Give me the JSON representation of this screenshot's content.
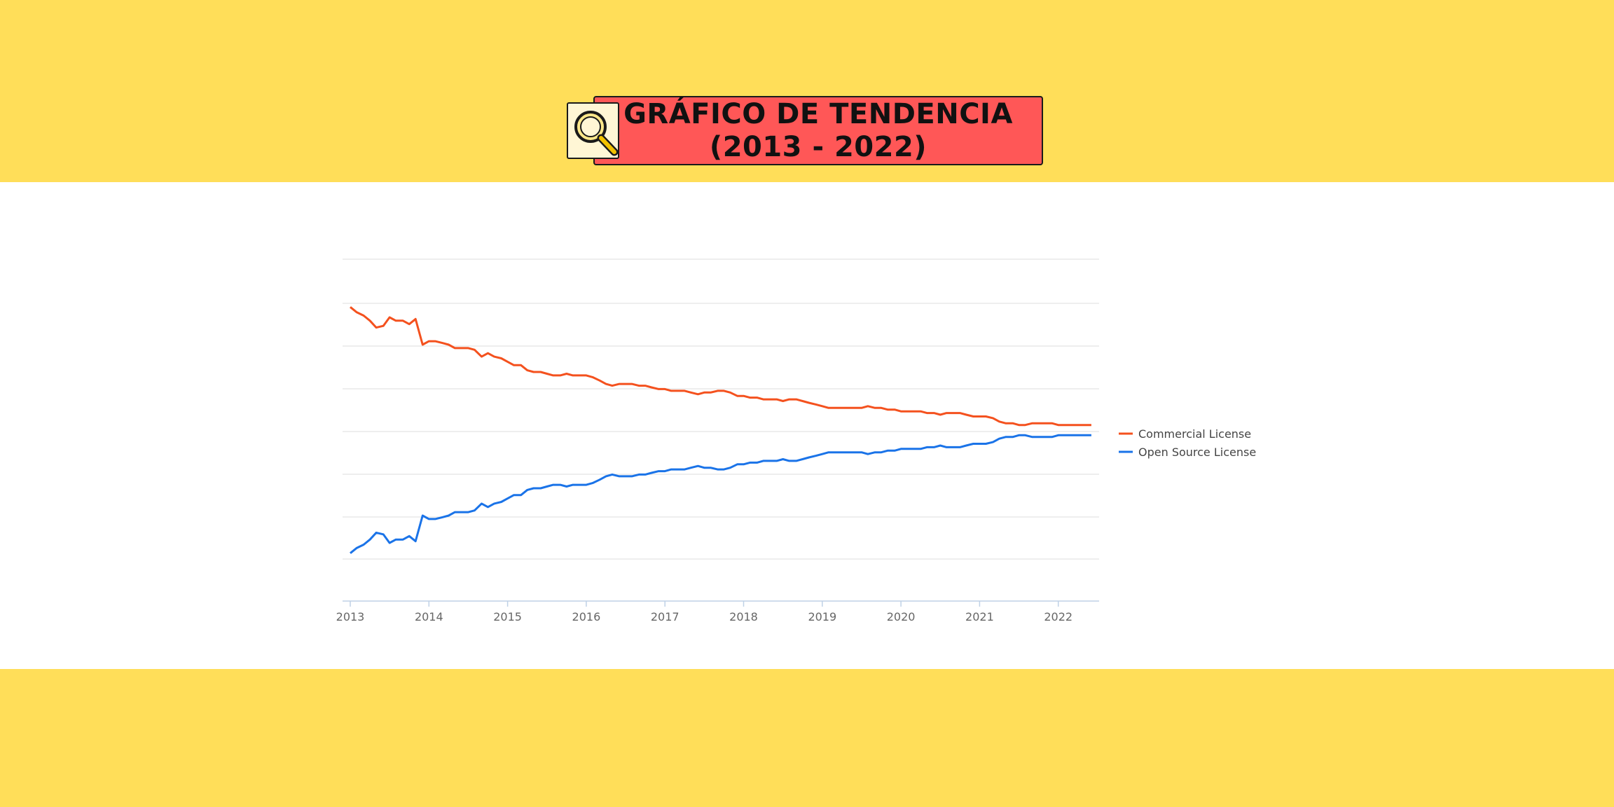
{
  "header": {
    "title_line1": "GRÁFICO DE TENDENCIA",
    "title_line2": "(2013 - 2022)",
    "icon": "magnifier-icon"
  },
  "colors": {
    "background": "#FFDE59",
    "title_box": "#FF5757",
    "commercial": "#F4511E",
    "open_source": "#1A73E8"
  },
  "chart_data": {
    "type": "line",
    "x_range": [
      2013.0,
      2022.5
    ],
    "ylim": [
      0,
      100
    ],
    "grid": true,
    "legend_position": "right",
    "x_ticks": [
      "2013",
      "2014",
      "2015",
      "2016",
      "2017",
      "2018",
      "2019",
      "2020",
      "2021",
      "2022"
    ],
    "series": [
      {
        "name": "Commercial License",
        "color": "#F4511E",
        "points": [
          [
            2013.0,
            86.0
          ],
          [
            2013.08,
            84.5
          ],
          [
            2013.17,
            83.5
          ],
          [
            2013.25,
            82.0
          ],
          [
            2013.33,
            80.0
          ],
          [
            2013.42,
            80.5
          ],
          [
            2013.5,
            83.0
          ],
          [
            2013.58,
            82.0
          ],
          [
            2013.67,
            82.0
          ],
          [
            2013.75,
            81.0
          ],
          [
            2013.83,
            82.5
          ],
          [
            2013.92,
            75.0
          ],
          [
            2014.0,
            76.0
          ],
          [
            2014.08,
            76.0
          ],
          [
            2014.17,
            75.5
          ],
          [
            2014.25,
            75.0
          ],
          [
            2014.33,
            74.0
          ],
          [
            2014.42,
            74.0
          ],
          [
            2014.5,
            74.0
          ],
          [
            2014.58,
            73.5
          ],
          [
            2014.67,
            71.5
          ],
          [
            2014.75,
            72.5
          ],
          [
            2014.83,
            71.5
          ],
          [
            2014.92,
            71.0
          ],
          [
            2015.0,
            70.0
          ],
          [
            2015.08,
            69.0
          ],
          [
            2015.17,
            69.0
          ],
          [
            2015.25,
            67.5
          ],
          [
            2015.33,
            67.0
          ],
          [
            2015.42,
            67.0
          ],
          [
            2015.5,
            66.5
          ],
          [
            2015.58,
            66.0
          ],
          [
            2015.67,
            66.0
          ],
          [
            2015.75,
            66.5
          ],
          [
            2015.83,
            66.0
          ],
          [
            2015.92,
            66.0
          ],
          [
            2016.0,
            66.0
          ],
          [
            2016.08,
            65.5
          ],
          [
            2016.17,
            64.5
          ],
          [
            2016.25,
            63.5
          ],
          [
            2016.33,
            63.0
          ],
          [
            2016.42,
            63.5
          ],
          [
            2016.5,
            63.5
          ],
          [
            2016.58,
            63.5
          ],
          [
            2016.67,
            63.0
          ],
          [
            2016.75,
            63.0
          ],
          [
            2016.83,
            62.5
          ],
          [
            2016.92,
            62.0
          ],
          [
            2017.0,
            62.0
          ],
          [
            2017.08,
            61.5
          ],
          [
            2017.17,
            61.5
          ],
          [
            2017.25,
            61.5
          ],
          [
            2017.33,
            61.0
          ],
          [
            2017.42,
            60.5
          ],
          [
            2017.5,
            61.0
          ],
          [
            2017.58,
            61.0
          ],
          [
            2017.67,
            61.5
          ],
          [
            2017.75,
            61.5
          ],
          [
            2017.83,
            61.0
          ],
          [
            2017.92,
            60.0
          ],
          [
            2018.0,
            60.0
          ],
          [
            2018.08,
            59.5
          ],
          [
            2018.17,
            59.5
          ],
          [
            2018.25,
            59.0
          ],
          [
            2018.33,
            59.0
          ],
          [
            2018.42,
            59.0
          ],
          [
            2018.5,
            58.5
          ],
          [
            2018.58,
            59.0
          ],
          [
            2018.67,
            59.0
          ],
          [
            2018.75,
            58.5
          ],
          [
            2018.83,
            58.0
          ],
          [
            2018.92,
            57.5
          ],
          [
            2019.0,
            57.0
          ],
          [
            2019.08,
            56.5
          ],
          [
            2019.17,
            56.5
          ],
          [
            2019.25,
            56.5
          ],
          [
            2019.33,
            56.5
          ],
          [
            2019.42,
            56.5
          ],
          [
            2019.5,
            56.5
          ],
          [
            2019.58,
            57.0
          ],
          [
            2019.67,
            56.5
          ],
          [
            2019.75,
            56.5
          ],
          [
            2019.83,
            56.0
          ],
          [
            2019.92,
            56.0
          ],
          [
            2020.0,
            55.5
          ],
          [
            2020.08,
            55.5
          ],
          [
            2020.17,
            55.5
          ],
          [
            2020.25,
            55.5
          ],
          [
            2020.33,
            55.0
          ],
          [
            2020.42,
            55.0
          ],
          [
            2020.5,
            54.5
          ],
          [
            2020.58,
            55.0
          ],
          [
            2020.67,
            55.0
          ],
          [
            2020.75,
            55.0
          ],
          [
            2020.83,
            54.5
          ],
          [
            2020.92,
            54.0
          ],
          [
            2021.0,
            54.0
          ],
          [
            2021.08,
            54.0
          ],
          [
            2021.17,
            53.5
          ],
          [
            2021.25,
            52.5
          ],
          [
            2021.33,
            52.0
          ],
          [
            2021.42,
            52.0
          ],
          [
            2021.5,
            51.5
          ],
          [
            2021.58,
            51.5
          ],
          [
            2021.67,
            52.0
          ],
          [
            2021.75,
            52.0
          ],
          [
            2021.83,
            52.0
          ],
          [
            2021.92,
            52.0
          ],
          [
            2022.0,
            51.5
          ],
          [
            2022.08,
            51.5
          ],
          [
            2022.17,
            51.5
          ],
          [
            2022.25,
            51.5
          ],
          [
            2022.33,
            51.5
          ],
          [
            2022.42,
            51.5
          ]
        ]
      },
      {
        "name": "Open Source License",
        "color": "#1A73E8",
        "points": [
          [
            2013.0,
            14.0
          ],
          [
            2013.08,
            15.5
          ],
          [
            2013.17,
            16.5
          ],
          [
            2013.25,
            18.0
          ],
          [
            2013.33,
            20.0
          ],
          [
            2013.42,
            19.5
          ],
          [
            2013.5,
            17.0
          ],
          [
            2013.58,
            18.0
          ],
          [
            2013.67,
            18.0
          ],
          [
            2013.75,
            19.0
          ],
          [
            2013.83,
            17.5
          ],
          [
            2013.92,
            25.0
          ],
          [
            2014.0,
            24.0
          ],
          [
            2014.08,
            24.0
          ],
          [
            2014.17,
            24.5
          ],
          [
            2014.25,
            25.0
          ],
          [
            2014.33,
            26.0
          ],
          [
            2014.42,
            26.0
          ],
          [
            2014.5,
            26.0
          ],
          [
            2014.58,
            26.5
          ],
          [
            2014.67,
            28.5
          ],
          [
            2014.75,
            27.5
          ],
          [
            2014.83,
            28.5
          ],
          [
            2014.92,
            29.0
          ],
          [
            2015.0,
            30.0
          ],
          [
            2015.08,
            31.0
          ],
          [
            2015.17,
            31.0
          ],
          [
            2015.25,
            32.5
          ],
          [
            2015.33,
            33.0
          ],
          [
            2015.42,
            33.0
          ],
          [
            2015.5,
            33.5
          ],
          [
            2015.58,
            34.0
          ],
          [
            2015.67,
            34.0
          ],
          [
            2015.75,
            33.5
          ],
          [
            2015.83,
            34.0
          ],
          [
            2015.92,
            34.0
          ],
          [
            2016.0,
            34.0
          ],
          [
            2016.08,
            34.5
          ],
          [
            2016.17,
            35.5
          ],
          [
            2016.25,
            36.5
          ],
          [
            2016.33,
            37.0
          ],
          [
            2016.42,
            36.5
          ],
          [
            2016.5,
            36.5
          ],
          [
            2016.58,
            36.5
          ],
          [
            2016.67,
            37.0
          ],
          [
            2016.75,
            37.0
          ],
          [
            2016.83,
            37.5
          ],
          [
            2016.92,
            38.0
          ],
          [
            2017.0,
            38.0
          ],
          [
            2017.08,
            38.5
          ],
          [
            2017.17,
            38.5
          ],
          [
            2017.25,
            38.5
          ],
          [
            2017.33,
            39.0
          ],
          [
            2017.42,
            39.5
          ],
          [
            2017.5,
            39.0
          ],
          [
            2017.58,
            39.0
          ],
          [
            2017.67,
            38.5
          ],
          [
            2017.75,
            38.5
          ],
          [
            2017.83,
            39.0
          ],
          [
            2017.92,
            40.0
          ],
          [
            2018.0,
            40.0
          ],
          [
            2018.08,
            40.5
          ],
          [
            2018.17,
            40.5
          ],
          [
            2018.25,
            41.0
          ],
          [
            2018.33,
            41.0
          ],
          [
            2018.42,
            41.0
          ],
          [
            2018.5,
            41.5
          ],
          [
            2018.58,
            41.0
          ],
          [
            2018.67,
            41.0
          ],
          [
            2018.75,
            41.5
          ],
          [
            2018.83,
            42.0
          ],
          [
            2018.92,
            42.5
          ],
          [
            2019.0,
            43.0
          ],
          [
            2019.08,
            43.5
          ],
          [
            2019.17,
            43.5
          ],
          [
            2019.25,
            43.5
          ],
          [
            2019.33,
            43.5
          ],
          [
            2019.42,
            43.5
          ],
          [
            2019.5,
            43.5
          ],
          [
            2019.58,
            43.0
          ],
          [
            2019.67,
            43.5
          ],
          [
            2019.75,
            43.5
          ],
          [
            2019.83,
            44.0
          ],
          [
            2019.92,
            44.0
          ],
          [
            2020.0,
            44.5
          ],
          [
            2020.08,
            44.5
          ],
          [
            2020.17,
            44.5
          ],
          [
            2020.25,
            44.5
          ],
          [
            2020.33,
            45.0
          ],
          [
            2020.42,
            45.0
          ],
          [
            2020.5,
            45.5
          ],
          [
            2020.58,
            45.0
          ],
          [
            2020.67,
            45.0
          ],
          [
            2020.75,
            45.0
          ],
          [
            2020.83,
            45.5
          ],
          [
            2020.92,
            46.0
          ],
          [
            2021.0,
            46.0
          ],
          [
            2021.08,
            46.0
          ],
          [
            2021.17,
            46.5
          ],
          [
            2021.25,
            47.5
          ],
          [
            2021.33,
            48.0
          ],
          [
            2021.42,
            48.0
          ],
          [
            2021.5,
            48.5
          ],
          [
            2021.58,
            48.5
          ],
          [
            2021.67,
            48.0
          ],
          [
            2021.75,
            48.0
          ],
          [
            2021.83,
            48.0
          ],
          [
            2021.92,
            48.0
          ],
          [
            2022.0,
            48.5
          ],
          [
            2022.08,
            48.5
          ],
          [
            2022.17,
            48.5
          ],
          [
            2022.25,
            48.5
          ],
          [
            2022.33,
            48.5
          ],
          [
            2022.42,
            48.5
          ]
        ]
      }
    ]
  }
}
